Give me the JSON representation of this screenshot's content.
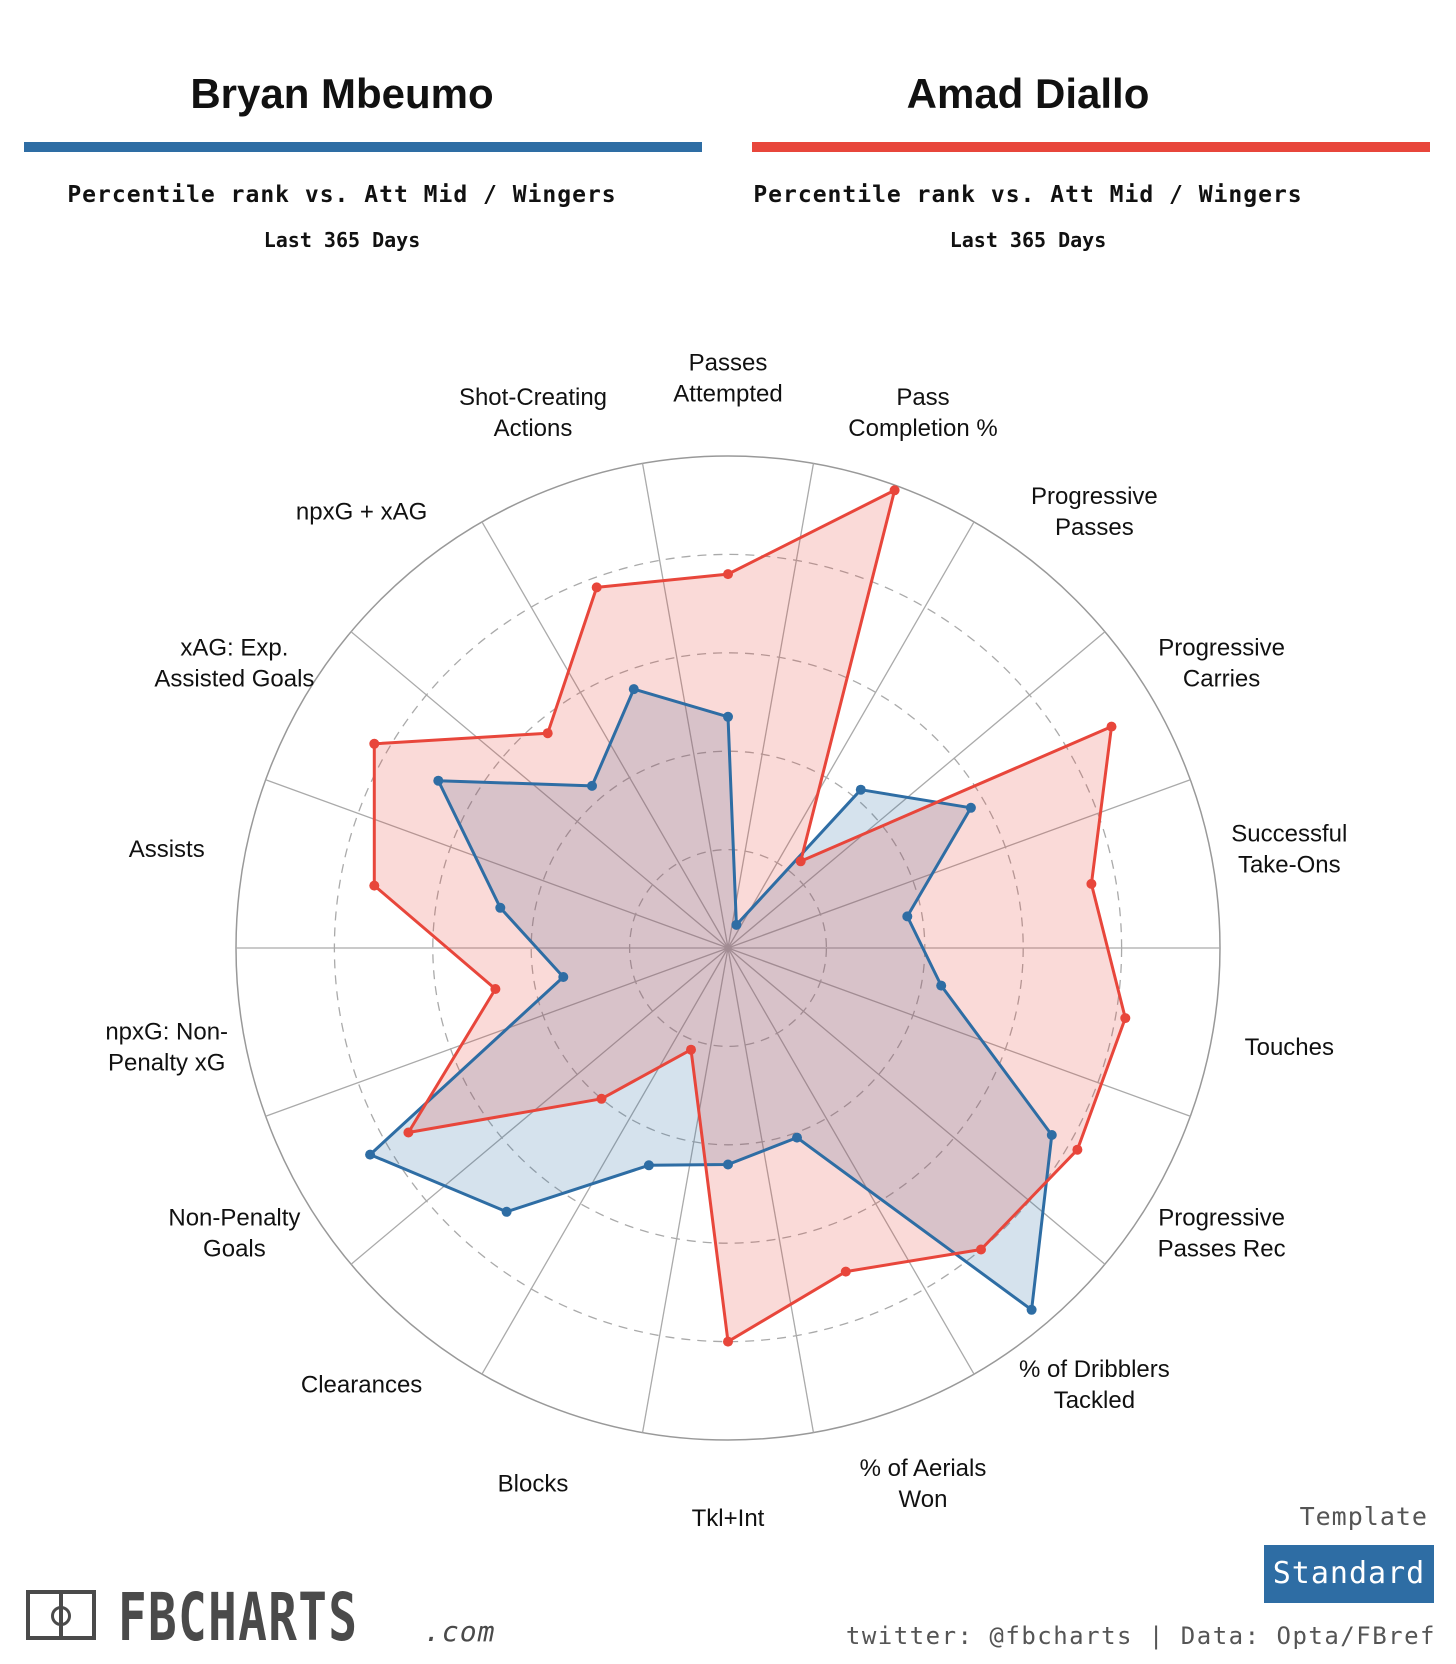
{
  "header": {
    "left": {
      "name": "Bryan Mbeumo",
      "subtitle": "Percentile rank vs. Att Mid / Wingers",
      "period": "Last 365 Days",
      "color": "#2e6da4"
    },
    "right": {
      "name": "Amad Diallo",
      "subtitle": "Percentile rank vs. Att Mid / Wingers",
      "period": "Last 365 Days",
      "color": "#e8463b"
    }
  },
  "chart_data": {
    "type": "radar",
    "range": [
      0,
      100
    ],
    "rings": [
      20,
      40,
      60,
      80,
      100
    ],
    "dashed_rings": [
      20,
      40,
      60,
      80
    ],
    "axes": [
      [
        "Passes",
        "Attempted"
      ],
      [
        "Pass",
        "Completion %"
      ],
      [
        "Progressive",
        "Passes"
      ],
      [
        "Progressive",
        "Carries"
      ],
      [
        "Successful",
        "Take-Ons"
      ],
      [
        "Touches"
      ],
      [
        "Progressive",
        "Passes Rec"
      ],
      [
        "% of Dribblers",
        "Tackled"
      ],
      [
        "% of Aerials",
        "Won"
      ],
      [
        "Tkl+Int"
      ],
      [
        "Blocks"
      ],
      [
        "Clearances"
      ],
      [
        "Non-Penalty",
        "Goals"
      ],
      [
        "npxG: Non-",
        "Penalty xG"
      ],
      [
        "Assists"
      ],
      [
        "xAG: Exp.",
        "Assisted Goals"
      ],
      [
        "npxG + xAG"
      ],
      [
        "Shot-Creating",
        "Actions"
      ]
    ],
    "series": [
      {
        "name": "Bryan Mbeumo",
        "color": "#2e6da4",
        "values": [
          47,
          5,
          42,
          57,
          37,
          44,
          76,
          96,
          41,
          44,
          47,
          70,
          84,
          34,
          47,
          68,
          43,
          56
        ]
      },
      {
        "name": "Amad Diallo",
        "color": "#e8463b",
        "values": [
          76,
          99,
          23,
          90,
          75,
          82,
          82,
          80,
          70,
          80,
          22,
          40,
          75,
          48,
          73,
          83,
          57,
          78
        ]
      }
    ]
  },
  "branding": {
    "logo_text": "FBCHARTS",
    "logo_suffix": ".com",
    "template_label": "Template",
    "template_value": "Standard",
    "template_color": "#2e6da4",
    "footer": "twitter: @fbcharts | Data: Opta/FBref"
  }
}
